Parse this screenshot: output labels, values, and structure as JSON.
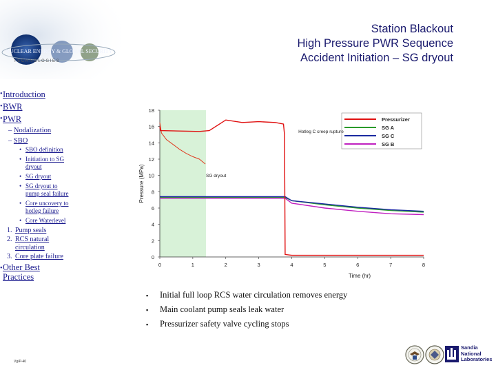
{
  "header": {
    "title_lines": [
      "Station Blackout",
      "High Pressure PWR Sequence",
      "Accident Initiation – SG dryout"
    ],
    "logo_text": "NUCLEAR ENERGY & GLOBAL SECURITY",
    "logo_subtext": "T E C H N O L O G I E S"
  },
  "sidebar": {
    "items": [
      {
        "label": "Introduction"
      },
      {
        "label": "BWR"
      },
      {
        "label": "PWR"
      }
    ],
    "sub": [
      {
        "label": "Nodalization"
      },
      {
        "label": "SBO"
      }
    ],
    "sbo_items": [
      {
        "label": "SBO definition"
      },
      {
        "label": "Initiation to SG dryout"
      },
      {
        "label": "SG dryout"
      },
      {
        "label": "SG dryout to pump seal failure"
      },
      {
        "label": "Core uncovery to hotleg failure"
      },
      {
        "label": "Core Waterlevel"
      }
    ],
    "numbered": [
      {
        "num": "1.",
        "label": "Pump seals"
      },
      {
        "num": "2.",
        "label": "RCS natural circulation"
      },
      {
        "num": "3.",
        "label": "Core plate failure"
      }
    ],
    "other": {
      "label": "Other Best Practices"
    }
  },
  "bullets": [
    "Initial full loop RCS water circulation removes energy",
    "Main coolant pump seals leak water",
    "Pressurizer safety valve  cycling stops"
  ],
  "footer": {
    "version": "Vg/P-40",
    "lab_name_lines": [
      "Sandia",
      "National",
      "Laboratories"
    ]
  },
  "chart_data": {
    "type": "line",
    "xlabel": "Time (hr)",
    "ylabel": "Pressure (MPa)",
    "xlim": [
      0,
      8
    ],
    "ylim": [
      0,
      18
    ],
    "xticks": [
      0,
      1,
      2,
      3,
      4,
      5,
      6,
      7,
      8
    ],
    "yticks": [
      0,
      2,
      4,
      6,
      8,
      10,
      12,
      14,
      16,
      18
    ],
    "grid": false,
    "legend": "top-right",
    "shaded_region": {
      "x": [
        0,
        1.4
      ],
      "color": "#d8f2d8"
    },
    "series": [
      {
        "name": "Pressurizer",
        "color": "#e01010",
        "x": [
          0,
          0.02,
          1.2,
          1.5,
          2.0,
          2.5,
          3.0,
          3.5,
          3.75,
          3.78,
          3.8,
          4.0,
          8.0
        ],
        "y": [
          16.0,
          15.5,
          15.4,
          15.5,
          16.8,
          16.5,
          16.6,
          16.5,
          16.3,
          15.0,
          0.3,
          0.2,
          0.2
        ]
      },
      {
        "name": "SG A",
        "color": "#2a9a2a",
        "x": [
          0,
          3.8,
          4.0,
          5.0,
          6.0,
          7.0,
          8.0
        ],
        "y": [
          7.3,
          7.3,
          6.9,
          6.4,
          6.0,
          5.7,
          5.5
        ]
      },
      {
        "name": "SG C",
        "color": "#1a2aa0",
        "x": [
          0,
          3.8,
          4.0,
          5.0,
          6.0,
          7.0,
          8.0
        ],
        "y": [
          7.4,
          7.4,
          6.9,
          6.5,
          6.1,
          5.8,
          5.6
        ]
      },
      {
        "name": "SG B",
        "color": "#c020c0",
        "x": [
          0,
          3.8,
          4.0,
          5.0,
          6.0,
          7.0,
          8.0
        ],
        "y": [
          7.2,
          7.2,
          6.6,
          6.0,
          5.6,
          5.3,
          5.2
        ]
      }
    ],
    "sg_dryout_curve": {
      "color": "#e03a20",
      "x": [
        0,
        0.05,
        0.2,
        0.4,
        0.6,
        0.8,
        1.0,
        1.2,
        1.38
      ],
      "y": [
        16.5,
        15.2,
        14.4,
        13.8,
        13.2,
        12.7,
        12.3,
        12.0,
        11.4
      ]
    },
    "annotations": [
      {
        "text": "Hotleg C creep rupture",
        "x": 4.2,
        "y": 15.2
      },
      {
        "text": "SG dryout",
        "x": 1.4,
        "y": 9.8
      }
    ]
  }
}
